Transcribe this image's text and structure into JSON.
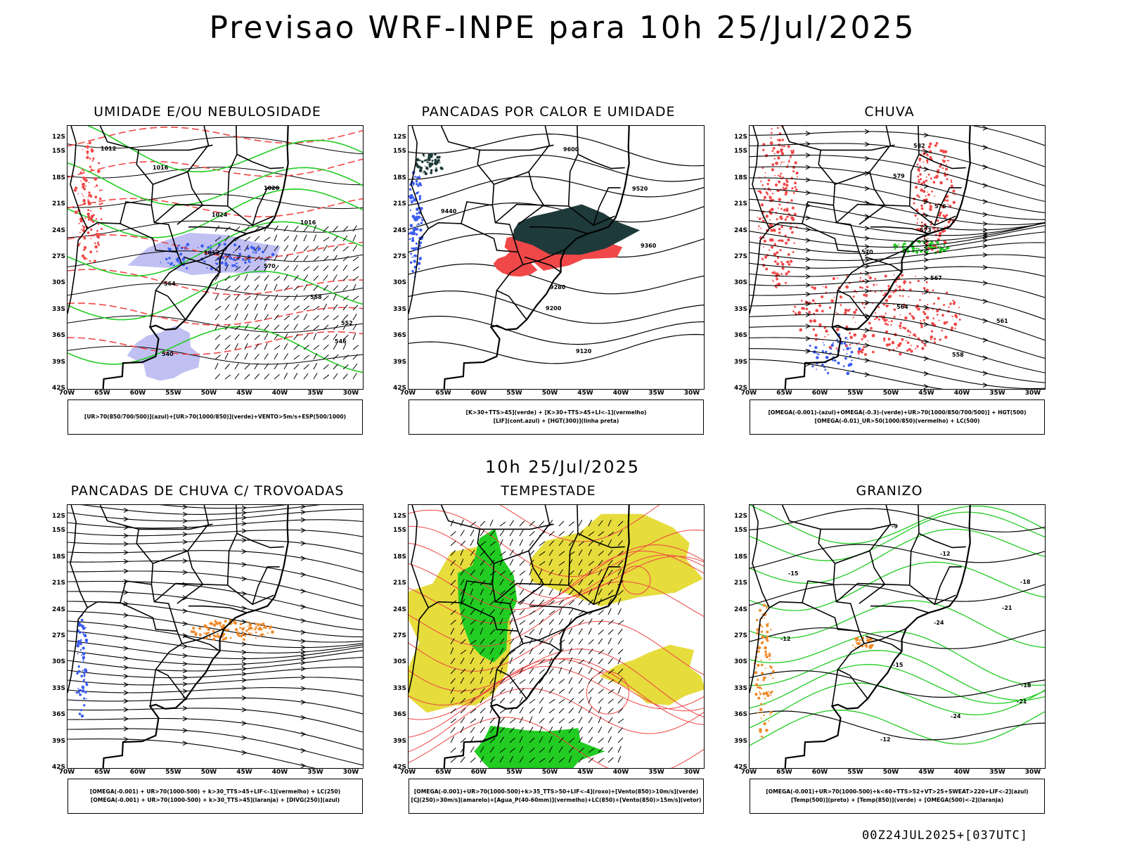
{
  "header": {
    "title": "Previsao WRF-INPE  para 10h 25/Jul/2025",
    "mid_time": "10h 25/Jul/2025",
    "footer_stamp": "00Z24JUL2025+[037UTC]"
  },
  "axes": {
    "lat_labels": [
      "12S",
      "15S",
      "18S",
      "21S",
      "24S",
      "27S",
      "30S",
      "33S",
      "36S",
      "39S",
      "42S"
    ],
    "lon_labels": [
      "70W",
      "65W",
      "60W",
      "55W",
      "50W",
      "45W",
      "40W",
      "35W",
      "30W"
    ]
  },
  "panels": [
    {
      "id": "umidade",
      "title": "UMIDADE E/OU NEBULOSIDADE",
      "legend": [
        "[UR>70(850/700/500)](azul)+[UR>70(1000/850)](verde)+VENTO>5m/s+ESP(500/1000)"
      ],
      "contour_labels": [
        "1012",
        "1016",
        "1020",
        "1024",
        "1016",
        "1012",
        "570",
        "564",
        "558",
        "552",
        "546",
        "540"
      ]
    },
    {
      "id": "pancadas-calor",
      "title": "PANCADAS POR CALOR E UMIDADE",
      "legend": [
        "[K>30+TTS>45](verde) + [K>30+TTS>45+LI<-1](vermelho)",
        "[LIF](cont.azul) + [HGT(300)](linha preta)"
      ],
      "contour_labels": [
        "9600",
        "9520",
        "9440",
        "9360",
        "9280",
        "9200",
        "9120",
        "9600",
        "9520",
        "9440",
        "9360",
        "9280",
        "9200",
        "9120"
      ]
    },
    {
      "id": "chuva",
      "title": "CHUVA",
      "legend": [
        "[OMEGA(-0.001)-(azul)+OMEGA(-0.3)-(verde)+UR>70(1000/850/700/500)] + HGT(500)",
        "[OMEGA(-0.01)_UR>50(1000/850)(vermelho) + LC(500)"
      ],
      "contour_labels": [
        "582",
        "579",
        "576",
        "573",
        "570",
        "567",
        "564",
        "561",
        "558",
        "582",
        "579",
        "576",
        "573",
        "570",
        "567",
        "564",
        "561",
        "558"
      ]
    },
    {
      "id": "pancadas-trovoadas",
      "title": "PANCADAS DE CHUVA C/ TROVOADAS",
      "legend": [
        "[OMEGA(-0.001) + UR>70(1000-500) + k>30_TTS>45+LIF<-1](vermelho) + LC(250)",
        "[OMEGA(-0.001) + UR>70(1000-500) + k>30_TTS>45](laranja) + [DIVG(250)](azul)"
      ],
      "contour_labels": []
    },
    {
      "id": "tempestade",
      "title": "TEMPESTADE",
      "legend": [
        "[OMEGA(-0.001)+UR>70(1000-500)+k>35_TTS>50+LIF<-4](roxo)+[Vento(850)>10m/s](verde)",
        "[CJ(250)>30m/s](amarelo)+[Agua_P(40-60mm)](vermelho)+LC(850)+[Vento(850)>15m/s](vetor)"
      ],
      "contour_labels": []
    },
    {
      "id": "granizo",
      "title": "GRANIZO",
      "legend": [
        "[OMEGA(-0.001)+UR>70(1000-500)+k<60+TTS>52+VT>25+SWEAT>220+LIF<-2](azul)",
        "[Temp(500)](preto) + [Temp(850)](verde) + [OMEGA(500)<-2](laranja)"
      ],
      "contour_labels": [
        "-9",
        "-12",
        "-15",
        "-18",
        "-21",
        "-24",
        "-12",
        "-15",
        "-18",
        "-21",
        "-24",
        "-12"
      ]
    }
  ],
  "colors": {
    "blue": "#3b5cf0",
    "light_blue": "#b9b9f2",
    "green": "#22cc22",
    "red": "#f04848",
    "dark_teal": "#1f3a3a",
    "yellow": "#e6dc3c",
    "orange": "#f08a2a",
    "vector_red": "#ee4444"
  }
}
